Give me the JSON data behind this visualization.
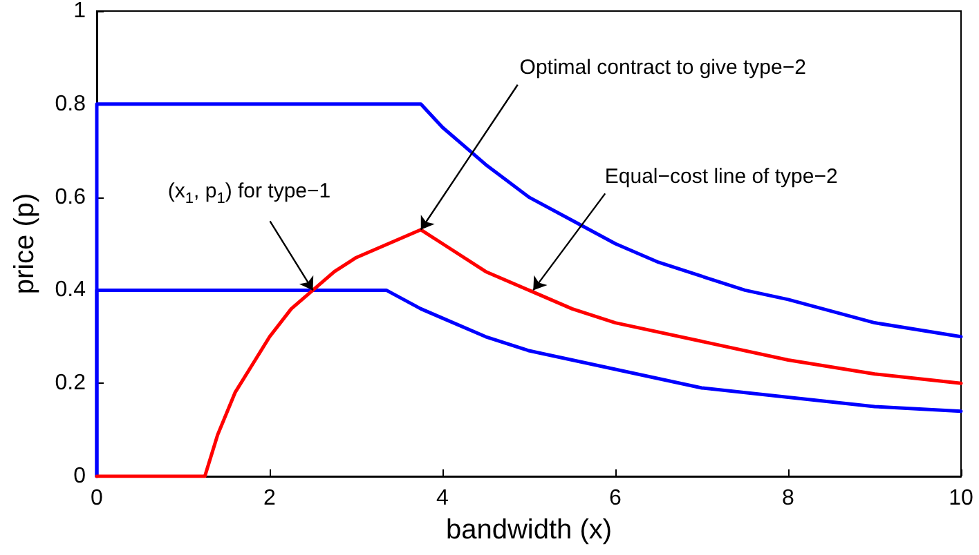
{
  "chart_data": {
    "type": "line",
    "xlabel": "bandwidth (x)",
    "ylabel": "price (p)",
    "xlim": [
      0,
      10
    ],
    "ylim": [
      0,
      1
    ],
    "xticks": [
      0,
      2,
      4,
      6,
      8,
      10
    ],
    "yticks": [
      0,
      0.2,
      0.4,
      0.6,
      0.8,
      1
    ],
    "grid": false,
    "marker": "none",
    "line_style": "solid",
    "series": [
      {
        "color": "#0000ff",
        "x": [
          0,
          0,
          3.75,
          4,
          4.25,
          4.5,
          5,
          5.5,
          6,
          6.5,
          7,
          7.5,
          8,
          9,
          10
        ],
        "values": [
          0,
          0.8,
          0.8,
          0.75,
          0.71,
          0.67,
          0.6,
          0.55,
          0.5,
          0.46,
          0.43,
          0.4,
          0.38,
          0.33,
          0.3
        ]
      },
      {
        "color": "#0000ff",
        "x": [
          0,
          0,
          3.35,
          3.75,
          4,
          4.5,
          5,
          5.5,
          6,
          7,
          8,
          9,
          10
        ],
        "values": [
          0,
          0.4,
          0.4,
          0.36,
          0.34,
          0.3,
          0.27,
          0.25,
          0.23,
          0.19,
          0.17,
          0.15,
          0.14
        ]
      },
      {
        "color": "#ff0000",
        "x": [
          0,
          1.25,
          1.4,
          1.6,
          1.8,
          2,
          2.25,
          2.5,
          2.75,
          3,
          3.25,
          3.5,
          3.75,
          4,
          4.5,
          5,
          5.5,
          6,
          7,
          8,
          9,
          10
        ],
        "values": [
          0,
          0,
          0.09,
          0.18,
          0.24,
          0.3,
          0.36,
          0.4,
          0.44,
          0.47,
          0.49,
          0.51,
          0.53,
          0.5,
          0.44,
          0.4,
          0.36,
          0.33,
          0.29,
          0.25,
          0.22,
          0.2
        ]
      }
    ],
    "annotations": [
      {
        "text": "(x$_{1}$, p$_{1}$) for type−1",
        "x": 2.5,
        "y": 0.4
      },
      {
        "text": "Optimal contract to give type−2",
        "x": 3.75,
        "y": 0.53
      },
      {
        "text": "Equal−cost line of type−2",
        "x": 5.05,
        "y": 0.4
      }
    ]
  }
}
